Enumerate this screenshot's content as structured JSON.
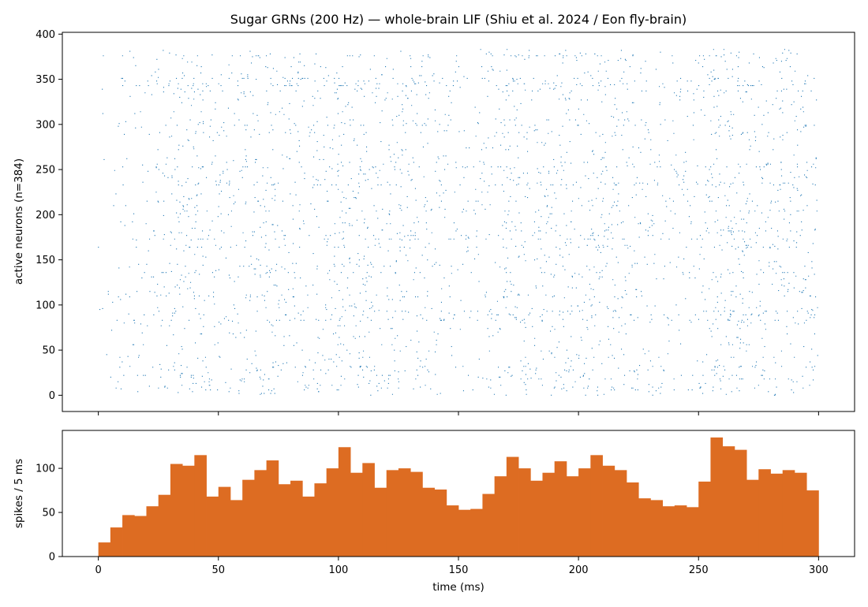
{
  "chart_data": [
    {
      "type": "scatter",
      "title": "Sugar GRNs (200 Hz) — whole-brain LIF (Shiu et al. 2024 / Eon fly-brain)",
      "xlabel": "",
      "ylabel": "active neurons (n=384)",
      "xlim": [
        -15,
        315
      ],
      "ylim": [
        -18,
        402
      ],
      "x_ticks": [
        0,
        50,
        100,
        150,
        200,
        250,
        300
      ],
      "y_ticks": [
        0,
        50,
        100,
        150,
        200,
        250,
        300,
        350,
        400
      ],
      "y_tick_labels": [
        "0",
        "50",
        "100",
        "150",
        "200",
        "250",
        "300",
        "350",
        "400"
      ],
      "marker_color": "#1f77b4",
      "grid": false
    },
    {
      "type": "bar",
      "xlabel": "time (ms)",
      "ylabel": "spikes / 5 ms",
      "bin_width_ms": 5,
      "xlim": [
        -15,
        315
      ],
      "ylim": [
        0,
        143
      ],
      "x_ticks": [
        0,
        50,
        100,
        150,
        200,
        250,
        300
      ],
      "x_tick_labels": [
        "0",
        "50",
        "100",
        "150",
        "200",
        "250",
        "300"
      ],
      "y_ticks": [
        0,
        50,
        100
      ],
      "y_tick_labels": [
        "0",
        "50",
        "100"
      ],
      "bar_color": "#dd6c22",
      "grid": false,
      "bin_starts": [
        0,
        5,
        10,
        15,
        20,
        25,
        30,
        35,
        40,
        45,
        50,
        55,
        60,
        65,
        70,
        75,
        80,
        85,
        90,
        95,
        100,
        105,
        110,
        115,
        120,
        125,
        130,
        135,
        140,
        145,
        150,
        155,
        160,
        165,
        170,
        175,
        180,
        185,
        190,
        195,
        200,
        205,
        210,
        215,
        220,
        225,
        230,
        235,
        240,
        245,
        250,
        255,
        260,
        265,
        270,
        275,
        280,
        285,
        290,
        295
      ],
      "values": [
        16,
        33,
        47,
        46,
        57,
        70,
        105,
        103,
        115,
        68,
        79,
        64,
        87,
        98,
        109,
        82,
        86,
        68,
        83,
        100,
        124,
        95,
        106,
        78,
        98,
        100,
        96,
        78,
        76,
        58,
        53,
        54,
        71,
        91,
        113,
        100,
        86,
        95,
        108,
        91,
        100,
        115,
        103,
        98,
        84,
        66,
        64,
        57,
        58,
        56,
        85,
        135,
        125,
        121,
        87,
        99,
        94,
        98,
        95,
        75
      ]
    }
  ]
}
